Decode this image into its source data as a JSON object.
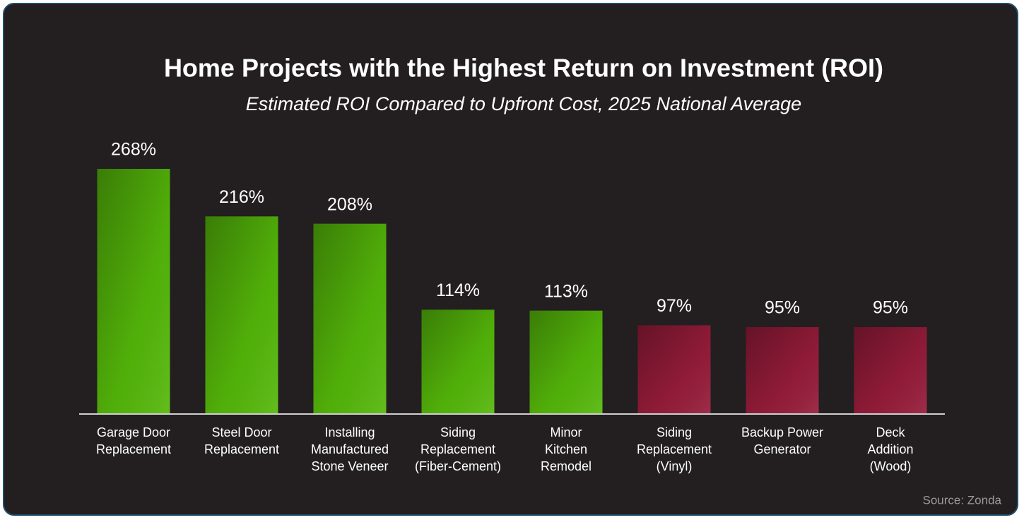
{
  "chart_data": {
    "type": "bar",
    "title": "Home Projects with the Highest Return on Investment (ROI)",
    "subtitle": "Estimated ROI Compared to Upfront Cost, 2025 National Average",
    "categories": [
      "Garage Door\nReplacement",
      "Steel Door\nReplacement",
      "Installing\nManufactured\nStone Veneer",
      "Siding\nReplacement\n(Fiber-Cement)",
      "Minor\nKitchen\nRemodel",
      "Siding\nReplacement\n(Vinyl)",
      "Backup Power\nGenerator",
      "Deck\nAddition\n(Wood)"
    ],
    "values": [
      268,
      216,
      208,
      114,
      113,
      97,
      95,
      95
    ],
    "value_labels": [
      "268%",
      "216%",
      "208%",
      "114%",
      "113%",
      "97%",
      "95%",
      "95%"
    ],
    "colors": [
      "#55b80a",
      "#55b80a",
      "#55b80a",
      "#55b80a",
      "#55b80a",
      "#961c3a",
      "#961c3a",
      "#961c3a"
    ],
    "source": "Source: Zonda"
  }
}
